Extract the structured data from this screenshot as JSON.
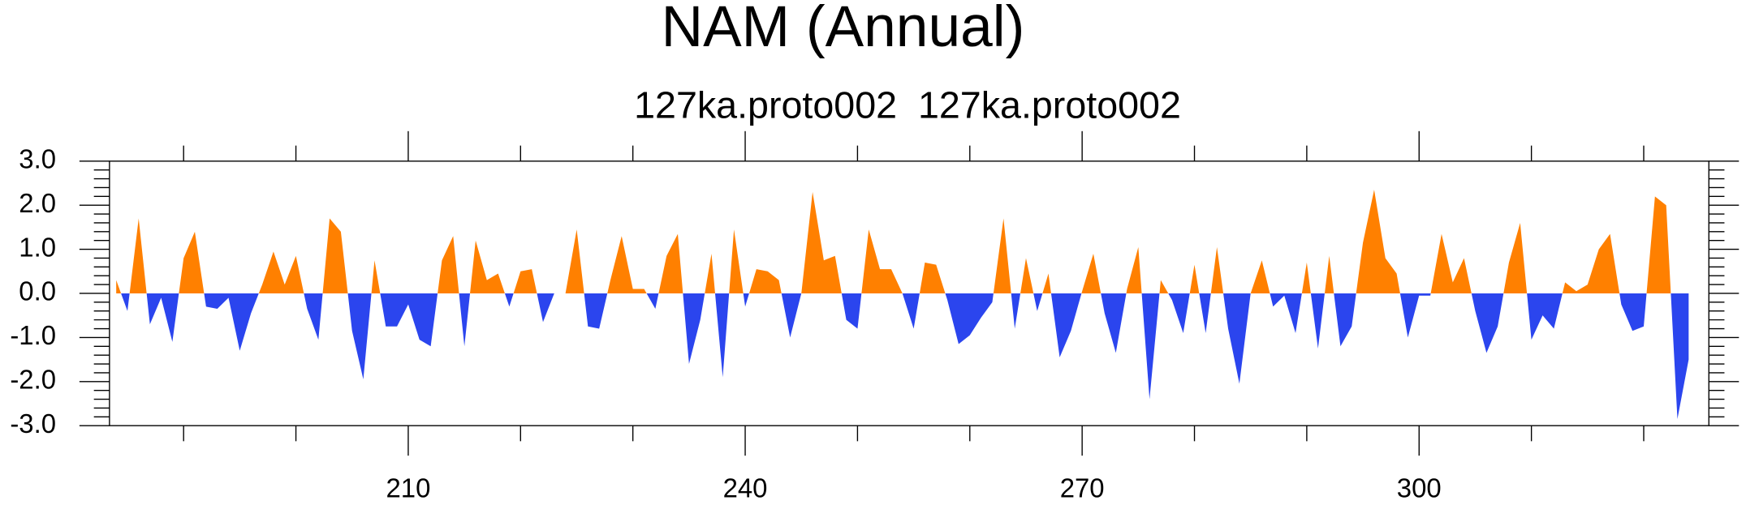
{
  "chart_data": {
    "type": "area",
    "title": "NAM (Annual)",
    "subtitle": "127ka.proto002  127ka.proto002",
    "positive_color": "#ff8000",
    "negative_color": "#2b45ee",
    "x": [
      184,
      185,
      186,
      187,
      188,
      189,
      190,
      191,
      192,
      193,
      194,
      195,
      196,
      197,
      198,
      199,
      200,
      201,
      202,
      203,
      204,
      205,
      206,
      207,
      208,
      209,
      210,
      211,
      212,
      213,
      214,
      215,
      216,
      217,
      218,
      219,
      220,
      221,
      222,
      223,
      224,
      225,
      226,
      227,
      228,
      229,
      230,
      231,
      232,
      233,
      234,
      235,
      236,
      237,
      238,
      239,
      240,
      241,
      242,
      243,
      244,
      245,
      246,
      247,
      248,
      249,
      250,
      251,
      252,
      253,
      254,
      255,
      256,
      257,
      258,
      259,
      260,
      261,
      262,
      263,
      264,
      265,
      266,
      267,
      268,
      269,
      270,
      271,
      272,
      273,
      274,
      275,
      276,
      277,
      278,
      279,
      280,
      281,
      282,
      283,
      284,
      285,
      286,
      287,
      288,
      289,
      290,
      291,
      292,
      293,
      294,
      295,
      296,
      297,
      298,
      299,
      300,
      301,
      302,
      303,
      304,
      305,
      306,
      307,
      308,
      309,
      310,
      311,
      312,
      313,
      314,
      315,
      316,
      317,
      318,
      319,
      320,
      321,
      322,
      323,
      324
    ],
    "values": [
      0.3,
      -0.4,
      1.7,
      -0.7,
      -0.1,
      -1.1,
      0.8,
      1.4,
      -0.3,
      -0.35,
      -0.1,
      -1.3,
      -0.45,
      0.2,
      0.95,
      0.2,
      0.85,
      -0.35,
      -1.05,
      1.7,
      1.4,
      -0.85,
      -1.95,
      0.75,
      -0.75,
      -0.75,
      -0.25,
      -1.05,
      -1.2,
      0.75,
      1.3,
      -1.2,
      1.2,
      0.3,
      0.45,
      -0.3,
      0.5,
      0.55,
      -0.65,
      0.0,
      0.0,
      1.45,
      -0.75,
      -0.8,
      0.3,
      1.3,
      0.1,
      0.1,
      -0.35,
      0.85,
      1.35,
      -1.6,
      -0.6,
      0.9,
      -1.9,
      1.45,
      -0.3,
      0.55,
      0.5,
      0.3,
      -1.0,
      0.0,
      2.3,
      0.75,
      0.85,
      -0.6,
      -0.8,
      1.45,
      0.55,
      0.55,
      0.0,
      -0.8,
      0.7,
      0.65,
      -0.15,
      -1.15,
      -0.95,
      -0.55,
      -0.2,
      1.7,
      -0.8,
      0.8,
      -0.4,
      0.45,
      -1.45,
      -0.85,
      0.05,
      0.9,
      -0.45,
      -1.35,
      0.1,
      1.05,
      -2.4,
      0.3,
      -0.15,
      -0.9,
      0.65,
      -0.9,
      1.05,
      -0.8,
      -2.05,
      0.0,
      0.75,
      -0.3,
      -0.05,
      -0.9,
      0.7,
      -1.25,
      0.85,
      -1.2,
      -0.75,
      1.15,
      2.35,
      0.8,
      0.45,
      -1.0,
      -0.05,
      -0.05,
      1.35,
      0.25,
      0.8,
      -0.4,
      -1.35,
      -0.75,
      0.7,
      1.6,
      -1.05,
      -0.5,
      -0.8,
      0.25,
      0.05,
      0.2,
      1.0,
      1.35,
      -0.25,
      -0.85,
      -0.75,
      2.2,
      2.0,
      -2.85,
      -1.5
    ],
    "xlim": [
      183.4,
      325.8
    ],
    "ylim": [
      -3,
      3
    ],
    "xticks": [
      210,
      240,
      270,
      300
    ],
    "xminorticks": [
      190,
      200,
      220,
      230,
      250,
      260,
      280,
      290,
      310,
      320
    ],
    "yticks": [
      {
        "value": 3,
        "label": "3.0"
      },
      {
        "value": 2,
        "label": "2.0"
      },
      {
        "value": 1,
        "label": "1.0"
      },
      {
        "value": 0,
        "label": "0.0"
      },
      {
        "value": -1,
        "label": "-1.0"
      },
      {
        "value": -2,
        "label": "-2.0"
      },
      {
        "value": -3,
        "label": "-3.0"
      }
    ],
    "yminorticks": [
      2.8,
      2.6,
      2.4,
      2.2,
      1.8,
      1.6,
      1.4,
      1.2,
      0.8,
      0.6,
      0.4,
      0.2,
      -0.2,
      -0.4,
      -0.6,
      -0.8,
      -1.2,
      -1.4,
      -1.6,
      -1.8,
      -2.2,
      -2.4,
      -2.6,
      -2.8
    ]
  }
}
